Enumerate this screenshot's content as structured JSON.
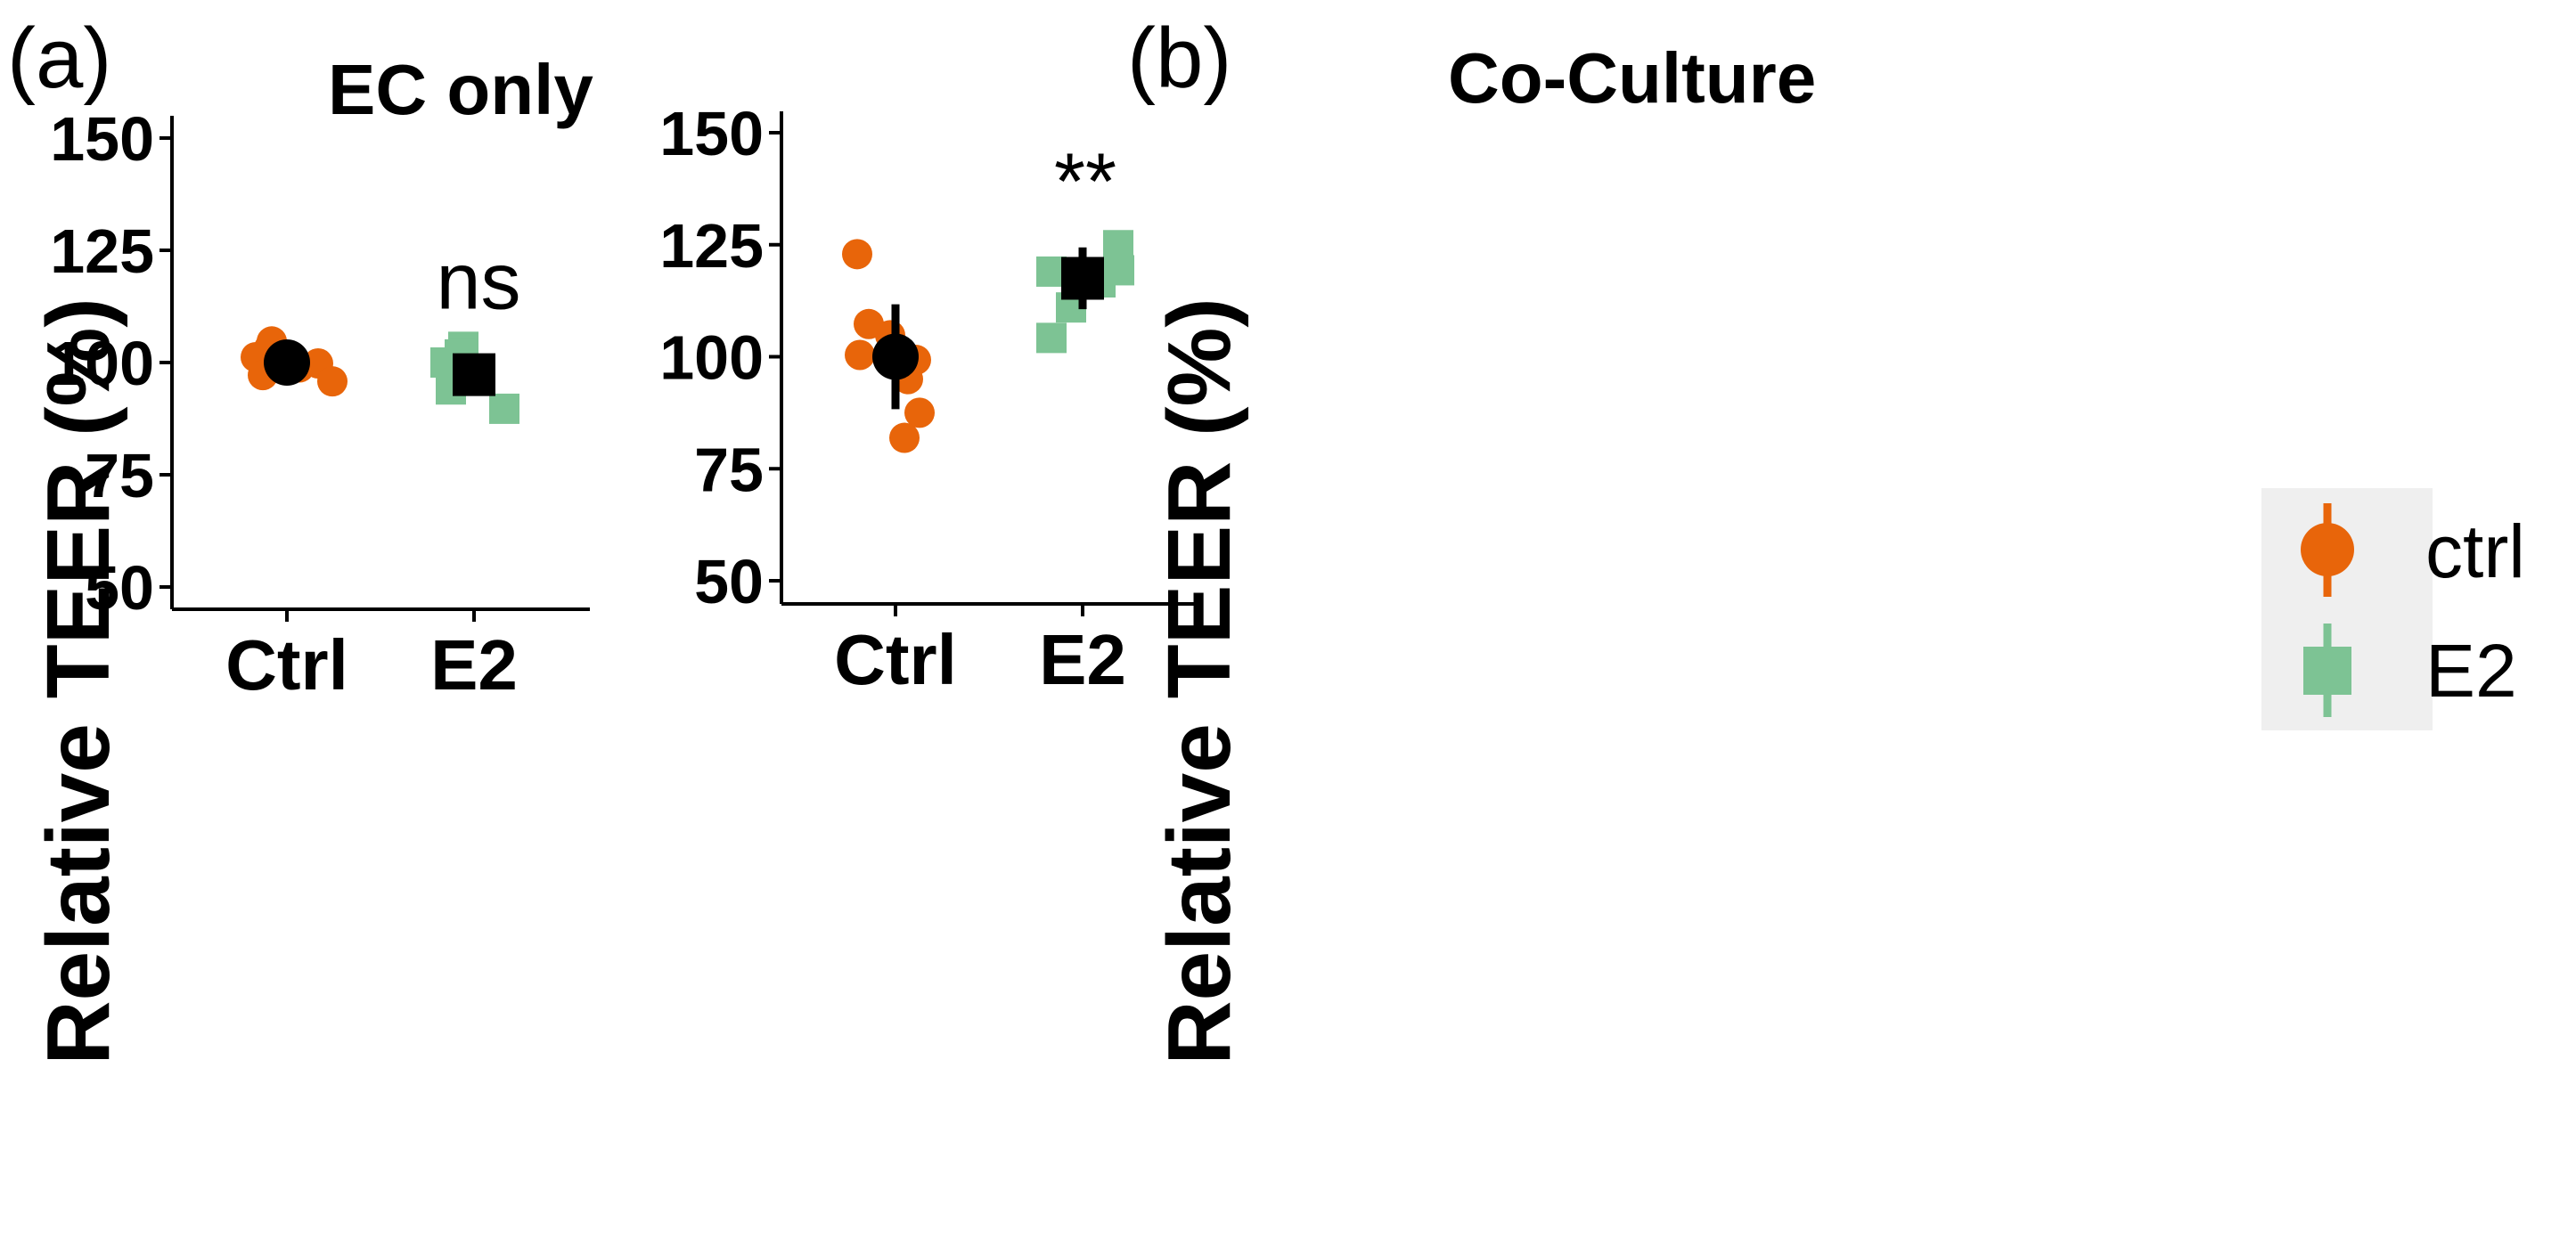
{
  "colors": {
    "ctrl": "#E8650A",
    "e2": "#7DC394",
    "mean": "#000000",
    "legend_bg": "#EFEFEF"
  },
  "legend": {
    "items": [
      {
        "label": "ctrl",
        "color": "#E8650A",
        "shape": "circle"
      },
      {
        "label": "E2",
        "color": "#7DC394",
        "shape": "square"
      }
    ]
  },
  "chart_data": [
    {
      "type": "scatter",
      "panel": "(a)",
      "title": "EC only",
      "ylabel": "Relative TEER (%)",
      "xlabel": "",
      "categories": [
        "Ctrl",
        "E2"
      ],
      "ylim": [
        47,
        155
      ],
      "yticks": [
        50,
        75,
        100,
        125,
        150
      ],
      "annotation": "ns",
      "annotation_y": 118,
      "series": [
        {
          "name": "ctrl",
          "category": "Ctrl",
          "points": [
            101.2,
            97.2,
            103.2,
            104.7,
            100.6,
            98.9,
            99.8,
            95.8
          ],
          "mean": 100.0,
          "err_low": 98.8,
          "err_high": 101.2
        },
        {
          "name": "E2",
          "category": "E2",
          "points": [
            100.0,
            98.5,
            103.5,
            94.0,
            101.8,
            97.9,
            89.7
          ],
          "mean": 97.3,
          "err_low": 93.0,
          "err_high": 101.8
        }
      ]
    },
    {
      "type": "scatter",
      "panel": "(b)",
      "title": "Co-Culture",
      "ylabel": "Relative TEER (%)",
      "xlabel": "",
      "categories": [
        "Ctrl",
        "E2"
      ],
      "ylim": [
        45,
        155
      ],
      "yticks": [
        50,
        75,
        100,
        125,
        150
      ],
      "annotation": "**",
      "annotation_y": 139,
      "series": [
        {
          "name": "ctrl",
          "category": "Ctrl",
          "points": [
            122.9,
            107.3,
            104.8,
            100.4,
            99.3,
            95.0,
            87.5,
            81.9
          ],
          "mean": 100.0,
          "err_low": 88.3,
          "err_high": 111.7
        },
        {
          "name": "E2",
          "category": "E2",
          "points": [
            119.0,
            104.2,
            111.0,
            116.6,
            124.9,
            119.3
          ],
          "mean": 117.5,
          "err_low": 110.6,
          "err_high": 124.4
        }
      ]
    }
  ]
}
